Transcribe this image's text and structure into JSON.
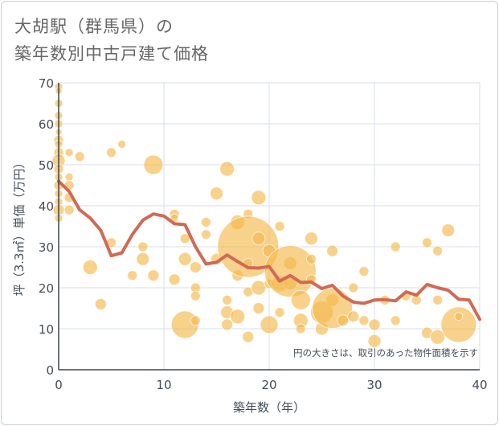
{
  "chart_data": {
    "type": "scatter",
    "title_line1": "大胡駅（群馬県）の",
    "title_line2": "築年数別中古戸建て価格",
    "xlabel": "築年数（年）",
    "ylabel": "坪（3.3㎡）単価（万円）",
    "xlim": [
      0,
      40
    ],
    "ylim": [
      0,
      70
    ],
    "x_ticks": [
      0,
      10,
      20,
      30,
      40
    ],
    "y_ticks": [
      0,
      10,
      20,
      30,
      40,
      50,
      60,
      70
    ],
    "annotation": "円の大きさは、取引のあった物件面積を示す",
    "colors": {
      "bubble": "#f5b94d",
      "line": "#d06a55",
      "grid": "#d7dfe8",
      "axis": "#3c4550"
    },
    "bubbles": [
      {
        "x": 0,
        "y": 69,
        "r": 5
      },
      {
        "x": 0,
        "y": 68,
        "r": 4
      },
      {
        "x": 0,
        "y": 65,
        "r": 5
      },
      {
        "x": 0,
        "y": 62,
        "r": 5
      },
      {
        "x": 0,
        "y": 60,
        "r": 5
      },
      {
        "x": 0,
        "y": 58,
        "r": 4
      },
      {
        "x": 0,
        "y": 56,
        "r": 6
      },
      {
        "x": 0,
        "y": 55,
        "r": 5
      },
      {
        "x": 0,
        "y": 53,
        "r": 6
      },
      {
        "x": 0,
        "y": 51,
        "r": 8
      },
      {
        "x": 0,
        "y": 49,
        "r": 6
      },
      {
        "x": 0,
        "y": 47,
        "r": 5
      },
      {
        "x": 0,
        "y": 45,
        "r": 6
      },
      {
        "x": 0,
        "y": 43,
        "r": 5
      },
      {
        "x": 0,
        "y": 41,
        "r": 5
      },
      {
        "x": 0,
        "y": 39,
        "r": 7
      },
      {
        "x": 0,
        "y": 37,
        "r": 5
      },
      {
        "x": 1,
        "y": 53,
        "r": 5
      },
      {
        "x": 1,
        "y": 47,
        "r": 5
      },
      {
        "x": 1,
        "y": 45,
        "r": 6
      },
      {
        "x": 1,
        "y": 42,
        "r": 6
      },
      {
        "x": 1,
        "y": 39,
        "r": 6
      },
      {
        "x": 2,
        "y": 52,
        "r": 6
      },
      {
        "x": 3,
        "y": 25,
        "r": 9
      },
      {
        "x": 4,
        "y": 16,
        "r": 7
      },
      {
        "x": 5,
        "y": 53,
        "r": 6
      },
      {
        "x": 5,
        "y": 31,
        "r": 6
      },
      {
        "x": 6,
        "y": 55,
        "r": 5
      },
      {
        "x": 7,
        "y": 23,
        "r": 6
      },
      {
        "x": 8,
        "y": 30,
        "r": 6
      },
      {
        "x": 8,
        "y": 27,
        "r": 8
      },
      {
        "x": 9,
        "y": 50,
        "r": 12
      },
      {
        "x": 9,
        "y": 23,
        "r": 7
      },
      {
        "x": 11,
        "y": 38,
        "r": 6
      },
      {
        "x": 11,
        "y": 37,
        "r": 5
      },
      {
        "x": 11,
        "y": 22,
        "r": 7
      },
      {
        "x": 12,
        "y": 32,
        "r": 6
      },
      {
        "x": 12,
        "y": 27,
        "r": 8
      },
      {
        "x": 12,
        "y": 11,
        "r": 17
      },
      {
        "x": 13,
        "y": 25,
        "r": 7
      },
      {
        "x": 13,
        "y": 20,
        "r": 6
      },
      {
        "x": 13,
        "y": 18,
        "r": 6
      },
      {
        "x": 13,
        "y": 12,
        "r": 6
      },
      {
        "x": 14,
        "y": 36,
        "r": 6
      },
      {
        "x": 14,
        "y": 33,
        "r": 6
      },
      {
        "x": 15,
        "y": 43,
        "r": 8
      },
      {
        "x": 15,
        "y": 27,
        "r": 7
      },
      {
        "x": 16,
        "y": 49,
        "r": 9
      },
      {
        "x": 16,
        "y": 17,
        "r": 6
      },
      {
        "x": 16,
        "y": 14,
        "r": 8
      },
      {
        "x": 16,
        "y": 11,
        "r": 7
      },
      {
        "x": 17,
        "y": 36,
        "r": 9
      },
      {
        "x": 17,
        "y": 23,
        "r": 7
      },
      {
        "x": 17,
        "y": 13,
        "r": 9
      },
      {
        "x": 18,
        "y": 38,
        "r": 6
      },
      {
        "x": 18,
        "y": 30,
        "r": 38
      },
      {
        "x": 18,
        "y": 26,
        "r": 6
      },
      {
        "x": 18,
        "y": 19,
        "r": 6
      },
      {
        "x": 18,
        "y": 8,
        "r": 7
      },
      {
        "x": 19,
        "y": 42,
        "r": 9
      },
      {
        "x": 19,
        "y": 32,
        "r": 8
      },
      {
        "x": 19,
        "y": 20,
        "r": 9
      },
      {
        "x": 19,
        "y": 15,
        "r": 7
      },
      {
        "x": 20,
        "y": 29,
        "r": 8
      },
      {
        "x": 20,
        "y": 21,
        "r": 6
      },
      {
        "x": 20,
        "y": 11,
        "r": 11
      },
      {
        "x": 21,
        "y": 35,
        "r": 6
      },
      {
        "x": 21,
        "y": 21,
        "r": 10
      },
      {
        "x": 21,
        "y": 14,
        "r": 6
      },
      {
        "x": 22,
        "y": 26,
        "r": 8
      },
      {
        "x": 22,
        "y": 21,
        "r": 8
      },
      {
        "x": 22,
        "y": 24,
        "r": 32
      },
      {
        "x": 23,
        "y": 17,
        "r": 12
      },
      {
        "x": 23,
        "y": 12,
        "r": 9
      },
      {
        "x": 23,
        "y": 10,
        "r": 6
      },
      {
        "x": 24,
        "y": 32,
        "r": 8
      },
      {
        "x": 24,
        "y": 27,
        "r": 6
      },
      {
        "x": 24,
        "y": 22,
        "r": 6
      },
      {
        "x": 25,
        "y": 14,
        "r": 14
      },
      {
        "x": 25,
        "y": 10,
        "r": 8
      },
      {
        "x": 26,
        "y": 29,
        "r": 7
      },
      {
        "x": 26,
        "y": 17,
        "r": 8
      },
      {
        "x": 26,
        "y": 15,
        "r": 25
      },
      {
        "x": 27,
        "y": 12,
        "r": 7
      },
      {
        "x": 28,
        "y": 20,
        "r": 6
      },
      {
        "x": 28,
        "y": 13,
        "r": 7
      },
      {
        "x": 29,
        "y": 24,
        "r": 6
      },
      {
        "x": 29,
        "y": 12,
        "r": 6
      },
      {
        "x": 30,
        "y": 11,
        "r": 7
      },
      {
        "x": 30,
        "y": 7,
        "r": 8
      },
      {
        "x": 31,
        "y": 17,
        "r": 6
      },
      {
        "x": 32,
        "y": 30,
        "r": 6
      },
      {
        "x": 32,
        "y": 12,
        "r": 6
      },
      {
        "x": 33,
        "y": 18,
        "r": 6
      },
      {
        "x": 34,
        "y": 17,
        "r": 6
      },
      {
        "x": 35,
        "y": 31,
        "r": 6
      },
      {
        "x": 35,
        "y": 9,
        "r": 7
      },
      {
        "x": 36,
        "y": 29,
        "r": 6
      },
      {
        "x": 36,
        "y": 17,
        "r": 6
      },
      {
        "x": 36,
        "y": 8,
        "r": 9
      },
      {
        "x": 37,
        "y": 34,
        "r": 8
      },
      {
        "x": 38,
        "y": 11,
        "r": 22
      },
      {
        "x": 38,
        "y": 13,
        "r": 5
      }
    ],
    "trend_line": {
      "x": [
        0,
        1,
        2,
        3,
        4,
        5,
        6,
        7,
        8,
        9,
        10,
        11,
        12,
        13,
        14,
        15,
        16,
        17,
        18,
        19,
        20,
        21,
        22,
        23,
        24,
        25,
        26,
        27,
        28,
        29,
        30,
        31,
        32,
        33,
        34,
        35,
        36,
        37,
        38,
        39,
        40
      ],
      "y": [
        46,
        43.5,
        39,
        37,
        34,
        27.8,
        28.5,
        33,
        36.5,
        38,
        37.5,
        35.6,
        35.4,
        30,
        25.8,
        26.2,
        28,
        26.4,
        24.9,
        24.8,
        25.2,
        21.6,
        23,
        21.3,
        21.4,
        19.8,
        20.6,
        18,
        16.5,
        16.2,
        17,
        17.1,
        16.8,
        19,
        18.2,
        20.8,
        20,
        19.4,
        17.2,
        17,
        12.3
      ]
    }
  }
}
